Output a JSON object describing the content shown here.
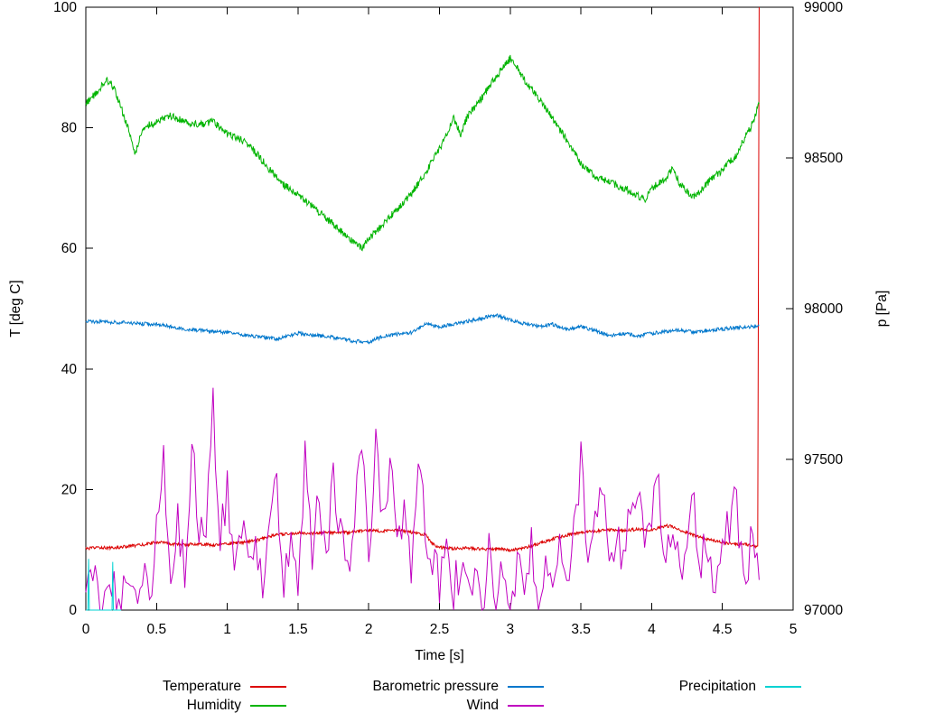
{
  "page": {
    "background": "#ffffff",
    "frame_color": "#000000",
    "text_color": "#000000"
  },
  "chart_data": {
    "type": "line",
    "title": "",
    "xlabel": "Time [s]",
    "ylabel_left": "T [deg C]",
    "ylabel_right": "p [Pa]",
    "xlim": [
      0,
      5
    ],
    "ylim_left": [
      0,
      100
    ],
    "ylim_right": [
      97000,
      99000
    ],
    "grid": false,
    "legend_position": "bottom",
    "legend_rows": 2,
    "x_ticks": {
      "values": [
        0,
        0.5,
        1,
        1.5,
        2,
        2.5,
        3,
        3.5,
        4,
        4.5,
        5
      ],
      "labels": [
        "0",
        "0.5",
        "1",
        "1.5",
        "2",
        "2.5",
        "3",
        "3.5",
        "4",
        "4.5",
        "5"
      ]
    },
    "y_ticks_left": {
      "values": [
        0,
        20,
        40,
        60,
        80,
        100
      ],
      "labels": [
        "0",
        "20",
        "40",
        "60",
        "80",
        "100"
      ]
    },
    "y_ticks_right": {
      "values": [
        97000,
        97500,
        98000,
        98500,
        99000
      ],
      "labels": [
        "97000",
        "97500",
        "98000",
        "98500",
        "99000"
      ]
    },
    "series": [
      {
        "name": "Temperature",
        "color": "#dc0000",
        "axis": "left",
        "noise": 0.25,
        "sample_step": 0.004,
        "x": [
          0,
          0.1,
          0.2,
          0.3,
          0.4,
          0.5,
          0.6,
          0.7,
          0.8,
          0.9,
          1.0,
          1.1,
          1.2,
          1.3,
          1.4,
          1.5,
          1.6,
          1.7,
          1.8,
          1.9,
          2.0,
          2.1,
          2.2,
          2.3,
          2.4,
          2.45,
          2.5,
          2.6,
          2.7,
          2.8,
          2.9,
          3.0,
          3.1,
          3.2,
          3.3,
          3.4,
          3.5,
          3.6,
          3.7,
          3.8,
          3.9,
          4.0,
          4.1,
          4.15,
          4.2,
          4.3,
          4.4,
          4.5,
          4.6,
          4.7,
          4.75,
          4.76
        ],
        "y": [
          10.2,
          10.4,
          10.3,
          10.6,
          10.8,
          11.3,
          11.0,
          10.8,
          11.0,
          10.8,
          11.0,
          11.2,
          11.5,
          12.3,
          12.6,
          12.8,
          12.7,
          12.9,
          12.8,
          13.0,
          13.2,
          13.1,
          13.3,
          12.9,
          12.5,
          11.0,
          10.4,
          10.2,
          10.3,
          10.1,
          10.2,
          9.9,
          10.3,
          11.0,
          11.8,
          12.4,
          12.9,
          13.1,
          13.3,
          13.2,
          13.4,
          13.3,
          14.0,
          13.8,
          13.2,
          12.4,
          11.7,
          11.2,
          11.0,
          10.8,
          10.4,
          100
        ]
      },
      {
        "name": "Humidity",
        "color": "#00b400",
        "axis": "left",
        "noise": 0.6,
        "sample_step": 0.004,
        "x": [
          0,
          0.1,
          0.15,
          0.2,
          0.3,
          0.35,
          0.4,
          0.5,
          0.6,
          0.7,
          0.8,
          0.9,
          1.0,
          1.1,
          1.2,
          1.3,
          1.4,
          1.5,
          1.6,
          1.7,
          1.8,
          1.9,
          1.95,
          2.0,
          2.1,
          2.2,
          2.3,
          2.4,
          2.5,
          2.55,
          2.6,
          2.65,
          2.7,
          2.8,
          2.9,
          3.0,
          3.05,
          3.1,
          3.2,
          3.3,
          3.4,
          3.5,
          3.6,
          3.7,
          3.8,
          3.9,
          3.95,
          4.0,
          4.1,
          4.15,
          4.2,
          4.3,
          4.4,
          4.5,
          4.6,
          4.65,
          4.7,
          4.76
        ],
        "y": [
          84,
          86.5,
          88,
          86.5,
          80,
          75.5,
          80,
          81,
          82,
          81,
          80.5,
          81,
          79,
          78,
          76,
          73,
          70.5,
          69,
          67,
          65,
          63,
          61,
          60,
          61.5,
          64,
          66.5,
          69,
          72.5,
          76.5,
          79,
          81.5,
          79,
          82,
          85,
          88.5,
          91.5,
          90,
          88,
          85,
          81.5,
          78,
          74,
          72,
          71,
          70,
          68.8,
          68,
          70,
          71.5,
          73.5,
          70.5,
          68.5,
          71,
          73,
          75.5,
          78,
          80,
          84
        ]
      },
      {
        "name": "Barometric pressure",
        "color": "#0077cc",
        "axis": "right",
        "noise": 6,
        "sample_step": 0.004,
        "x": [
          0,
          0.2,
          0.4,
          0.5,
          0.7,
          0.9,
          1.0,
          1.1,
          1.2,
          1.35,
          1.5,
          1.6,
          1.7,
          1.8,
          1.9,
          2.0,
          2.1,
          2.2,
          2.3,
          2.4,
          2.5,
          2.6,
          2.7,
          2.8,
          2.9,
          3.0,
          3.1,
          3.2,
          3.3,
          3.4,
          3.5,
          3.6,
          3.7,
          3.8,
          3.9,
          4.0,
          4.1,
          4.2,
          4.3,
          4.4,
          4.5,
          4.6,
          4.7,
          4.76
        ],
        "y": [
          97958,
          97955,
          97950,
          97948,
          97932,
          97925,
          97920,
          97915,
          97908,
          97900,
          97918,
          97912,
          97908,
          97900,
          97892,
          97890,
          97908,
          97915,
          97920,
          97948,
          97940,
          97948,
          97958,
          97968,
          97980,
          97962,
          97950,
          97940,
          97948,
          97930,
          97940,
          97928,
          97910,
          97918,
          97910,
          97918,
          97925,
          97928,
          97922,
          97928,
          97932,
          97938,
          97940,
          97945
        ]
      },
      {
        "name": "Wind",
        "color": "#c000c0",
        "axis": "left",
        "noise": 4,
        "clip_min": 0,
        "sample_step": 0.015,
        "x": [
          0,
          0.05,
          0.1,
          0.15,
          0.2,
          0.25,
          0.3,
          0.35,
          0.4,
          0.45,
          0.5,
          0.55,
          0.6,
          0.65,
          0.7,
          0.75,
          0.8,
          0.85,
          0.9,
          0.95,
          1,
          1.05,
          1.1,
          1.15,
          1.2,
          1.25,
          1.3,
          1.35,
          1.4,
          1.45,
          1.5,
          1.55,
          1.6,
          1.65,
          1.7,
          1.75,
          1.8,
          1.85,
          1.9,
          1.95,
          2,
          2.05,
          2.1,
          2.15,
          2.2,
          2.25,
          2.3,
          2.35,
          2.4,
          2.45,
          2.5,
          2.55,
          2.6,
          2.65,
          2.7,
          2.75,
          2.8,
          2.85,
          2.9,
          2.95,
          3,
          3.05,
          3.1,
          3.15,
          3.2,
          3.25,
          3.3,
          3.35,
          3.4,
          3.45,
          3.5,
          3.55,
          3.6,
          3.65,
          3.7,
          3.75,
          3.8,
          3.85,
          3.9,
          3.95,
          4,
          4.05,
          4.1,
          4.15,
          4.2,
          4.25,
          4.3,
          4.35,
          4.4,
          4.45,
          4.5,
          4.55,
          4.6,
          4.65,
          4.7,
          4.76
        ],
        "y": [
          3,
          5,
          2,
          6,
          3,
          1,
          4,
          2,
          7,
          1,
          12,
          24,
          8,
          14,
          5,
          29,
          10,
          16,
          34,
          12,
          20,
          8,
          15,
          5,
          10,
          3,
          13,
          20,
          6,
          11,
          4,
          25,
          10,
          18,
          7,
          22,
          12,
          6,
          16,
          30,
          8,
          30,
          14,
          24,
          10,
          18,
          6,
          28,
          12,
          8,
          4,
          10,
          3,
          8,
          2,
          6,
          1,
          9,
          4,
          7,
          2,
          8,
          5,
          10,
          3,
          7,
          1,
          9,
          6,
          13,
          25,
          9,
          15,
          21,
          8,
          14,
          6,
          17,
          22,
          9,
          16,
          21,
          8,
          13,
          5,
          11,
          18,
          7,
          12,
          4,
          9,
          15,
          18,
          6,
          10,
          5
        ]
      },
      {
        "name": "Precipitation",
        "color": "#00d2d2",
        "axis": "left",
        "noise": 0,
        "sample_step": 1,
        "x": [
          0,
          0.015,
          0.02,
          0.025,
          0.185,
          0.19,
          0.195,
          0.25
        ],
        "y": [
          0,
          0,
          8.5,
          0,
          0,
          8,
          0,
          0
        ]
      }
    ]
  }
}
